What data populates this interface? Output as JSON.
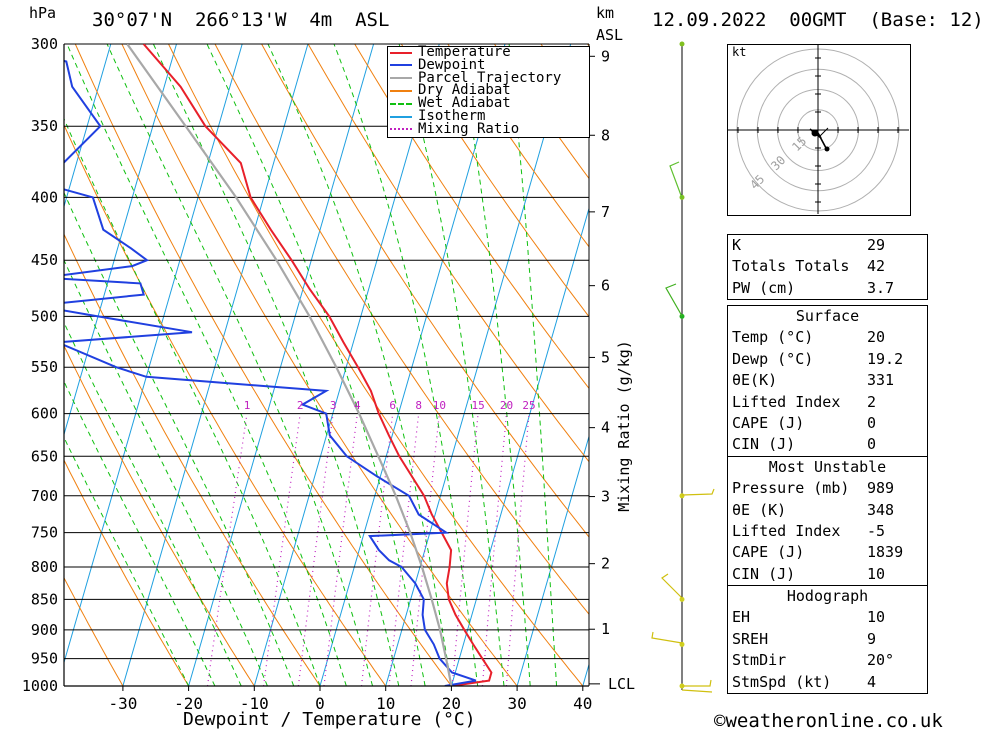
{
  "header": {
    "hpa": "hPa",
    "location": "30°07'N  266°13'W  4m  ASL",
    "km": "km",
    "asl": "ASL",
    "datetime": "12.09.2022  00GMT  (Base: 12)"
  },
  "footer": {
    "credit": "©weatheronline.co.uk"
  },
  "chart_data": {
    "type": "line",
    "title": "",
    "xlabel": "Dewpoint / Temperature (°C)",
    "ylabel": "hPa",
    "y2label": "Mixing Ratio (g/kg)",
    "x_ticks": [
      -30,
      -20,
      -10,
      0,
      10,
      20,
      30,
      40
    ],
    "pressure_levels": [
      300,
      350,
      400,
      450,
      500,
      550,
      600,
      650,
      700,
      750,
      800,
      850,
      900,
      950,
      1000
    ],
    "km_ticks": [
      "1",
      "2",
      "3",
      "4",
      "5",
      "6",
      "7",
      "8",
      "9"
    ],
    "km_lcl": "LCL",
    "mixing_ratio_labels": [
      "1",
      "2",
      "3",
      "4",
      "6",
      "8",
      "10",
      "15",
      "20",
      "25"
    ],
    "legend": {
      "placement": "top",
      "items": [
        {
          "name": "Temperature",
          "color": "#e8202a",
          "style": "solid"
        },
        {
          "name": "Dewpoint",
          "color": "#2040e0",
          "style": "solid"
        },
        {
          "name": "Parcel Trajectory",
          "color": "#a8a8a8",
          "style": "solid"
        },
        {
          "name": "Dry Adiabat",
          "color": "#f08010",
          "style": "solid"
        },
        {
          "name": "Wet Adiabat",
          "color": "#10c010",
          "style": "dashed"
        },
        {
          "name": "Isotherm",
          "color": "#20a0e0",
          "style": "solid"
        },
        {
          "name": "Mixing Ratio",
          "color": "#c020c0",
          "style": "dotted"
        }
      ]
    },
    "series": [
      {
        "name": "Temperature",
        "color": "#e8202a",
        "points": [
          [
            1000,
            20.0
          ],
          [
            990,
            25.5
          ],
          [
            975,
            25.5
          ],
          [
            950,
            23.5
          ],
          [
            925,
            21.5
          ],
          [
            900,
            19.5
          ],
          [
            875,
            17.5
          ],
          [
            850,
            15.8
          ],
          [
            825,
            14.8
          ],
          [
            800,
            14.5
          ],
          [
            775,
            14.0
          ],
          [
            750,
            11.8
          ],
          [
            725,
            9.5
          ],
          [
            700,
            7.5
          ],
          [
            675,
            4.8
          ],
          [
            650,
            2.0
          ],
          [
            625,
            -0.5
          ],
          [
            600,
            -3.0
          ],
          [
            575,
            -5.2
          ],
          [
            550,
            -8.2
          ],
          [
            525,
            -11.5
          ],
          [
            500,
            -14.8
          ],
          [
            475,
            -19.0
          ],
          [
            450,
            -23.0
          ],
          [
            425,
            -27.5
          ],
          [
            400,
            -32.0
          ],
          [
            375,
            -35.0
          ],
          [
            350,
            -42.0
          ],
          [
            325,
            -47.5
          ],
          [
            300,
            -55.0
          ]
        ]
      },
      {
        "name": "Dewpoint",
        "color": "#2040e0",
        "points": [
          [
            1000,
            19.0
          ],
          [
            990,
            23.5
          ],
          [
            975,
            19.5
          ],
          [
            950,
            17.0
          ],
          [
            925,
            15.5
          ],
          [
            900,
            13.5
          ],
          [
            875,
            12.5
          ],
          [
            850,
            12.0
          ],
          [
            825,
            10.0
          ],
          [
            800,
            7.2
          ],
          [
            790,
            5.0
          ],
          [
            775,
            3.0
          ],
          [
            755,
            1.0
          ],
          [
            750,
            12.5
          ],
          [
            725,
            7.5
          ],
          [
            700,
            5.2
          ],
          [
            675,
            -0.5
          ],
          [
            650,
            -6.0
          ],
          [
            625,
            -9.5
          ],
          [
            600,
            -11.0
          ],
          [
            590,
            -15.0
          ],
          [
            575,
            -12.0
          ],
          [
            560,
            -40.0
          ],
          [
            550,
            -45.0
          ],
          [
            525,
            -55.0
          ],
          [
            515,
            -35.0
          ],
          [
            500,
            -50.0
          ],
          [
            490,
            -60.0
          ],
          [
            480,
            -44.0
          ],
          [
            470,
            -45.0
          ],
          [
            465,
            -60.0
          ],
          [
            455,
            -47.0
          ],
          [
            450,
            -45.0
          ],
          [
            440,
            -48.0
          ],
          [
            425,
            -53.0
          ],
          [
            400,
            -56.0
          ],
          [
            390,
            -64.0
          ],
          [
            375,
            -62.0
          ],
          [
            350,
            -58.0
          ],
          [
            325,
            -64.0
          ],
          [
            310,
            -66.0
          ],
          [
            300,
            -78.0
          ]
        ]
      },
      {
        "name": "Parcel Trajectory",
        "color": "#a8a8a8",
        "points": [
          [
            1000,
            20.0
          ],
          [
            950,
            18.0
          ],
          [
            900,
            15.8
          ],
          [
            850,
            13.2
          ],
          [
            800,
            10.3
          ],
          [
            750,
            7.0
          ],
          [
            700,
            3.2
          ],
          [
            650,
            -1.2
          ],
          [
            600,
            -6.0
          ],
          [
            550,
            -11.5
          ],
          [
            500,
            -17.8
          ],
          [
            450,
            -25.3
          ],
          [
            400,
            -34.2
          ],
          [
            350,
            -45.0
          ],
          [
            300,
            -57.5
          ]
        ]
      }
    ]
  },
  "hodograph": {
    "unit": "kt",
    "ring_labels": [
      "15",
      "30",
      "45"
    ]
  },
  "indices": {
    "main": [
      {
        "label": "K",
        "value": "29"
      },
      {
        "label": "Totals Totals",
        "value": "42"
      },
      {
        "label": "PW (cm)",
        "value": "3.7"
      }
    ],
    "surface": {
      "title": "Surface",
      "rows": [
        {
          "label": "Temp (°C)",
          "value": "20"
        },
        {
          "label": "Dewp (°C)",
          "value": "19.2"
        },
        {
          "label": "θE(K)",
          "value": "331"
        },
        {
          "label": "Lifted Index",
          "value": "2"
        },
        {
          "label": "CAPE (J)",
          "value": "0"
        },
        {
          "label": "CIN (J)",
          "value": "0"
        }
      ]
    },
    "most_unstable": {
      "title": "Most Unstable",
      "rows": [
        {
          "label": "Pressure (mb)",
          "value": "989"
        },
        {
          "label": "θE (K)",
          "value": "348"
        },
        {
          "label": "Lifted Index",
          "value": "-5"
        },
        {
          "label": "CAPE (J)",
          "value": "1839"
        },
        {
          "label": "CIN (J)",
          "value": "10"
        }
      ]
    },
    "hodograph": {
      "title": "Hodograph",
      "rows": [
        {
          "label": "EH",
          "value": "10"
        },
        {
          "label": "SREH",
          "value": "9"
        },
        {
          "label": "StmDir",
          "value": "20°"
        },
        {
          "label": "StmSpd (kt)",
          "value": "4"
        }
      ]
    }
  }
}
